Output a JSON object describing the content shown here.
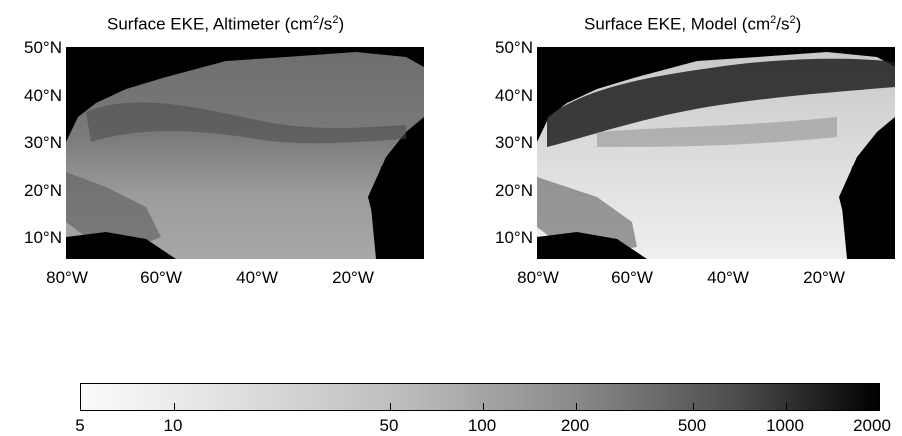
{
  "panels": [
    {
      "title_prefix": "Surface EKE, Altimeter (cm",
      "sup1": "2",
      "mid": "/s",
      "sup2": "2",
      "suffix": ")"
    },
    {
      "title_prefix": "Surface EKE, Model (cm",
      "sup1": "2",
      "mid": "/s",
      "sup2": "2",
      "suffix": ")"
    }
  ],
  "lat_labels": [
    "50°N",
    "40°N",
    "30°N",
    "20°N",
    "10°N"
  ],
  "lon_labels": [
    "80°W",
    "60°W",
    "40°W",
    "20°W"
  ],
  "colorbar": {
    "labels": [
      "5",
      "10",
      "50",
      "100",
      "200",
      "500",
      "1000",
      "2000"
    ],
    "scale": "log",
    "colors": {
      "low": "#fbfbfb",
      "high": "#000000"
    }
  }
}
